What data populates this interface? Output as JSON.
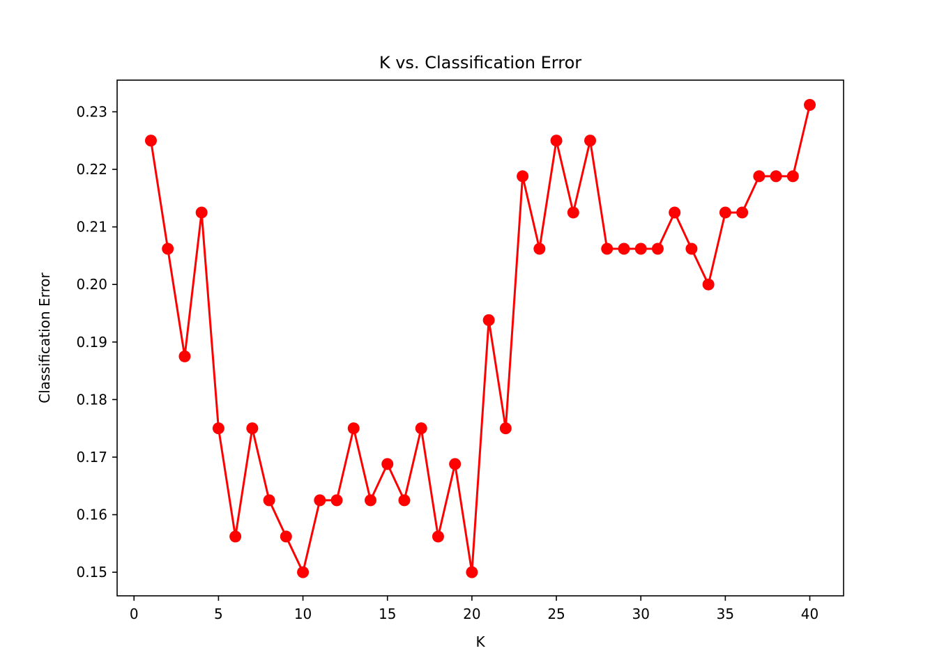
{
  "chart_data": {
    "type": "line",
    "title": "K vs. Classification Error",
    "xlabel": "K",
    "ylabel": "Classification Error",
    "xlim": [
      -1,
      42
    ],
    "ylim": [
      0.1459,
      0.2355
    ],
    "xticks": [
      0,
      5,
      10,
      15,
      20,
      25,
      30,
      35,
      40
    ],
    "xtick_labels": [
      "0",
      "5",
      "10",
      "15",
      "20",
      "25",
      "30",
      "35",
      "40"
    ],
    "yticks": [
      0.15,
      0.16,
      0.17,
      0.18,
      0.19,
      0.2,
      0.21,
      0.22,
      0.23
    ],
    "ytick_labels": [
      "0.15",
      "0.16",
      "0.17",
      "0.18",
      "0.19",
      "0.20",
      "0.21",
      "0.22",
      "0.23"
    ],
    "grid": false,
    "series": [
      {
        "color": "#ff0000",
        "marker": "circle",
        "x": [
          1,
          2,
          3,
          4,
          5,
          6,
          7,
          8,
          9,
          10,
          11,
          12,
          13,
          14,
          15,
          16,
          17,
          18,
          19,
          20,
          21,
          22,
          23,
          24,
          25,
          26,
          27,
          28,
          29,
          30,
          31,
          32,
          33,
          34,
          35,
          36,
          37,
          38,
          39,
          40
        ],
        "y": [
          0.225,
          0.2062,
          0.1875,
          0.2125,
          0.175,
          0.1562,
          0.175,
          0.1625,
          0.1562,
          0.15,
          0.1625,
          0.1625,
          0.175,
          0.1625,
          0.1688,
          0.1625,
          0.175,
          0.1562,
          0.1688,
          0.15,
          0.1938,
          0.175,
          0.2188,
          0.2062,
          0.225,
          0.2125,
          0.225,
          0.2062,
          0.2062,
          0.2062,
          0.2062,
          0.2125,
          0.2062,
          0.2,
          0.2125,
          0.2125,
          0.2188,
          0.2188,
          0.2188,
          0.2312
        ]
      }
    ]
  }
}
